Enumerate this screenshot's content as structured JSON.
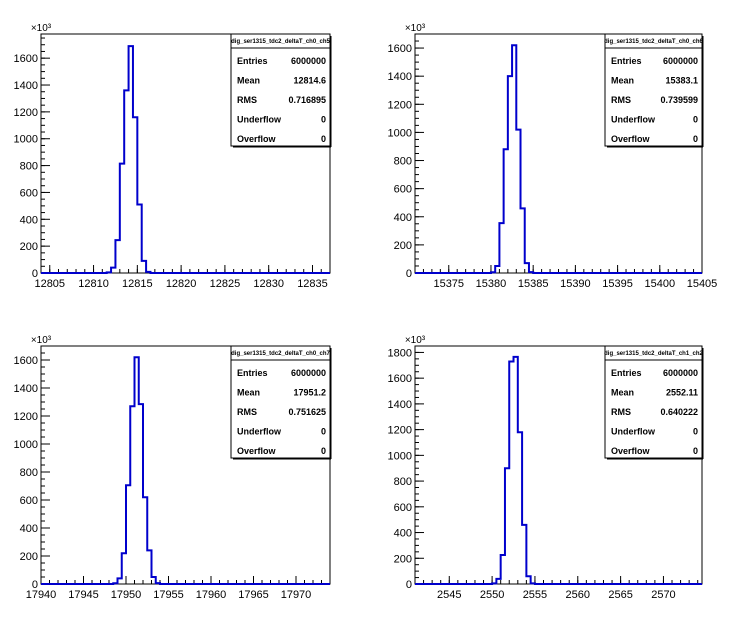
{
  "chart_data": [
    {
      "type": "histogram",
      "title": "",
      "exponent_label": "×10³",
      "xlabel": "",
      "ylabel": "",
      "xlim": [
        12804,
        12837
      ],
      "ylim": [
        0,
        1780
      ],
      "xticks": [
        12805,
        12810,
        12815,
        12820,
        12825,
        12830,
        12835
      ],
      "yticks": [
        0,
        200,
        400,
        600,
        800,
        1000,
        1200,
        1400,
        1600
      ],
      "ytick_labels": [
        "0",
        "200",
        "400",
        "600",
        "800",
        "1000",
        "1200",
        "1400",
        "1600"
      ],
      "bin_width": 0.5,
      "bins": [
        [
          12811.5,
          5
        ],
        [
          12812,
          40
        ],
        [
          12812.5,
          245
        ],
        [
          12813,
          815
        ],
        [
          12813.5,
          1360
        ],
        [
          12814,
          1690
        ],
        [
          12814.5,
          1160
        ],
        [
          12815,
          510
        ],
        [
          12815.5,
          90
        ],
        [
          12816,
          8
        ]
      ],
      "stats": {
        "name": "dig_ser1315_tdc2_deltaT_ch0_ch5",
        "rows": [
          {
            "label": "Entries",
            "value": "6000000"
          },
          {
            "label": "Mean",
            "value": "12814.6"
          },
          {
            "label": "RMS",
            "value": "0.716895"
          },
          {
            "label": "Underflow",
            "value": "0"
          },
          {
            "label": "Overflow",
            "value": "0"
          }
        ]
      }
    },
    {
      "type": "histogram",
      "title": "",
      "exponent_label": "×10³",
      "xlabel": "",
      "ylabel": "",
      "xlim": [
        15371,
        15405
      ],
      "ylim": [
        0,
        1700
      ],
      "xticks": [
        15375,
        15380,
        15385,
        15390,
        15395,
        15400,
        15405
      ],
      "yticks": [
        0,
        200,
        400,
        600,
        800,
        1000,
        1200,
        1400,
        1600
      ],
      "ytick_labels": [
        "0",
        "200",
        "400",
        "600",
        "800",
        "1000",
        "1200",
        "1400",
        "1600"
      ],
      "bin_width": 0.5,
      "bins": [
        [
          15380,
          5
        ],
        [
          15380.5,
          50
        ],
        [
          15381,
          355
        ],
        [
          15381.5,
          880
        ],
        [
          15382,
          1400
        ],
        [
          15382.5,
          1620
        ],
        [
          15383,
          1020
        ],
        [
          15383.5,
          460
        ],
        [
          15384,
          70
        ],
        [
          15384.5,
          6
        ]
      ],
      "stats": {
        "name": "dig_ser1315_tdc2_deltaT_ch0_ch6",
        "rows": [
          {
            "label": "Entries",
            "value": "6000000"
          },
          {
            "label": "Mean",
            "value": "15383.1"
          },
          {
            "label": "RMS",
            "value": "0.739599"
          },
          {
            "label": "Underflow",
            "value": "0"
          },
          {
            "label": "Overflow",
            "value": "0"
          }
        ]
      }
    },
    {
      "type": "histogram",
      "title": "",
      "exponent_label": "×10³",
      "xlabel": "",
      "ylabel": "",
      "xlim": [
        17940,
        17974
      ],
      "ylim": [
        0,
        1700
      ],
      "xticks": [
        17940,
        17945,
        17950,
        17955,
        17960,
        17965,
        17970
      ],
      "yticks": [
        0,
        200,
        400,
        600,
        800,
        1000,
        1200,
        1400,
        1600
      ],
      "ytick_labels": [
        "0",
        "200",
        "400",
        "600",
        "800",
        "1000",
        "1200",
        "1400",
        "1600"
      ],
      "bin_width": 0.5,
      "bins": [
        [
          17948.5,
          5
        ],
        [
          17949,
          40
        ],
        [
          17949.5,
          220
        ],
        [
          17950,
          705
        ],
        [
          17950.5,
          1270
        ],
        [
          17951,
          1620
        ],
        [
          17951.5,
          1285
        ],
        [
          17952,
          620
        ],
        [
          17952.5,
          240
        ],
        [
          17953,
          50
        ],
        [
          17953.5,
          6
        ]
      ],
      "stats": {
        "name": "dig_ser1315_tdc2_deltaT_ch0_ch7",
        "rows": [
          {
            "label": "Entries",
            "value": "6000000"
          },
          {
            "label": "Mean",
            "value": "17951.2"
          },
          {
            "label": "RMS",
            "value": "0.751625"
          },
          {
            "label": "Underflow",
            "value": "0"
          },
          {
            "label": "Overflow",
            "value": "0"
          }
        ]
      }
    },
    {
      "type": "histogram",
      "title": "",
      "exponent_label": "×10³",
      "xlabel": "",
      "ylabel": "",
      "xlim": [
        2541,
        2574.5
      ],
      "ylim": [
        0,
        1850
      ],
      "xticks": [
        2545,
        2550,
        2555,
        2560,
        2565,
        2570
      ],
      "yticks": [
        0,
        200,
        400,
        600,
        800,
        1000,
        1200,
        1400,
        1600,
        1800
      ],
      "ytick_labels": [
        "0",
        "200",
        "400",
        "600",
        "800",
        "1000",
        "1200",
        "1400",
        "1600",
        "1800"
      ],
      "bin_width": 0.5,
      "bins": [
        [
          2550,
          5
        ],
        [
          2550.5,
          40
        ],
        [
          2551,
          225
        ],
        [
          2551.5,
          900
        ],
        [
          2552,
          1730
        ],
        [
          2552.5,
          1765
        ],
        [
          2553,
          1180
        ],
        [
          2553.5,
          460
        ],
        [
          2554,
          60
        ],
        [
          2554.5,
          5
        ]
      ],
      "stats": {
        "name": "dig_ser1315_tdc2_deltaT_ch1_ch2",
        "rows": [
          {
            "label": "Entries",
            "value": "6000000"
          },
          {
            "label": "Mean",
            "value": "2552.11"
          },
          {
            "label": "RMS",
            "value": "0.640222"
          },
          {
            "label": "Underflow",
            "value": "0"
          },
          {
            "label": "Overflow",
            "value": "0"
          }
        ]
      }
    }
  ]
}
